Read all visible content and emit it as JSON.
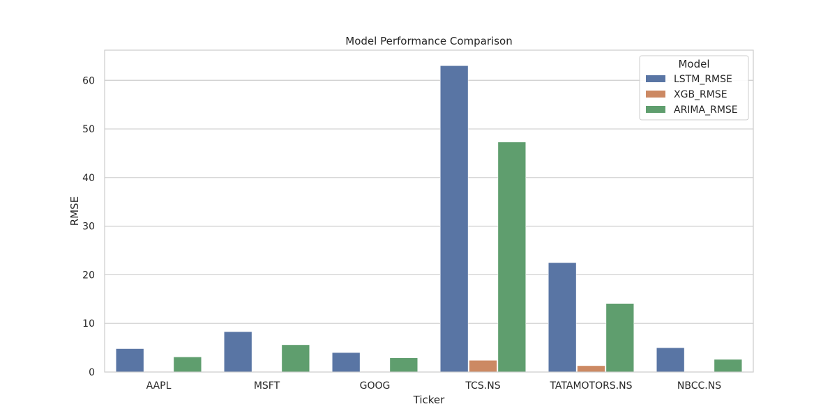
{
  "chart_data": {
    "type": "bar",
    "title": "Model Performance Comparison",
    "xlabel": "Ticker",
    "ylabel": "RMSE",
    "categories": [
      "AAPL",
      "MSFT",
      "GOOG",
      "TCS.NS",
      "TATAMOTORS.NS",
      "NBCC.NS"
    ],
    "ylim": [
      0,
      66.2
    ],
    "yticks": [
      0,
      10,
      20,
      30,
      40,
      50,
      60
    ],
    "grid": true,
    "legend": {
      "title": "Model",
      "placement": "top-right"
    },
    "series": [
      {
        "name": "LSTM_RMSE",
        "color": "#5975a4",
        "values": [
          4.8,
          8.3,
          4.0,
          63.0,
          22.5,
          5.0
        ]
      },
      {
        "name": "XGB_RMSE",
        "color": "#cc8963",
        "values": [
          0.1,
          0.1,
          0.1,
          2.4,
          1.3,
          0.1
        ]
      },
      {
        "name": "ARIMA_RMSE",
        "color": "#5f9e6e",
        "values": [
          3.1,
          5.6,
          2.9,
          47.3,
          14.1,
          2.6
        ]
      }
    ]
  }
}
